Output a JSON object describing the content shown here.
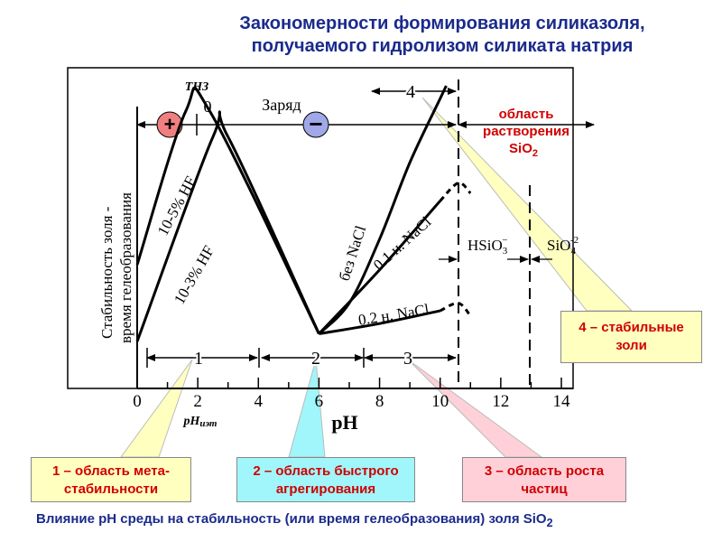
{
  "title": {
    "line1": "Закономерности формирования силиказоля,",
    "line2": "получаемого гидролизом силиката натрия"
  },
  "caption": "Влияние pH среды на стабильность (или время гелеобразования) золя SiO",
  "caption_sub": "2",
  "callouts": {
    "c1": "1 – область мета-стабильности",
    "c2": "2 – область быстрого агрегирования",
    "c3": "3 – область роста частиц",
    "c4": "4 – стабильные золи"
  },
  "chart_data": {
    "type": "line",
    "xlabel": "pH",
    "ylabel_line1": "Стабильность золя -",
    "ylabel_line2": "время гелеобразования",
    "xlim": [
      0,
      14
    ],
    "xticks": [
      "0",
      "2",
      "4",
      "6",
      "8",
      "10",
      "12",
      "14"
    ],
    "series": [
      {
        "name": "10-5% HF",
        "x": [
          0,
          1.6,
          2.4,
          6
        ],
        "y": [
          0.3,
          0.9,
          0.9,
          0.03
        ]
      },
      {
        "name": "10-3% HF",
        "x": [
          0,
          2.5,
          3.0,
          6
        ],
        "y": [
          0.0,
          0.8,
          0.8,
          0.03
        ]
      },
      {
        "name": "без NaCl",
        "x": [
          6,
          7,
          8,
          9,
          10,
          10.2
        ],
        "y": [
          0.03,
          0.15,
          0.4,
          0.7,
          0.95,
          1.0
        ]
      },
      {
        "name": "0.1 н. NaCl",
        "x": [
          6,
          8,
          10,
          10.6,
          11
        ],
        "y": [
          0.03,
          0.28,
          0.55,
          0.62,
          0.58
        ]
      },
      {
        "name": "0.2 н. NaCl",
        "x": [
          6,
          8,
          10,
          10.6,
          11
        ],
        "y": [
          0.03,
          0.07,
          0.12,
          0.15,
          0.1
        ]
      }
    ],
    "annotations": {
      "tnz": "ТНЗ",
      "zero": "0",
      "charge": "Заряд",
      "plus": "+",
      "minus": "−",
      "region4": "4",
      "dissolution_line1": "область",
      "dissolution_line2": "растворения",
      "dissolution_line3": "SiO",
      "dissolution_sub": "2",
      "hsio3": "HSiO",
      "hsio3_sub": "3",
      "hsio3_sup": "−",
      "sio4": "SiO",
      "sio4_sub": "4",
      "sio4_sup": "-2",
      "region1": "1",
      "region2": "2",
      "region3": "3",
      "phiet": "pH",
      "phiet_sub": "иэт"
    },
    "region_bounds": [
      0.3,
      2,
      4,
      6,
      7.5,
      10.6,
      13
    ],
    "grid": false
  },
  "colors": {
    "title": "#1a2a8c",
    "callout_text": "#d00000",
    "plus_circle": "#f08080",
    "minus_circle": "#a0a8e8"
  }
}
